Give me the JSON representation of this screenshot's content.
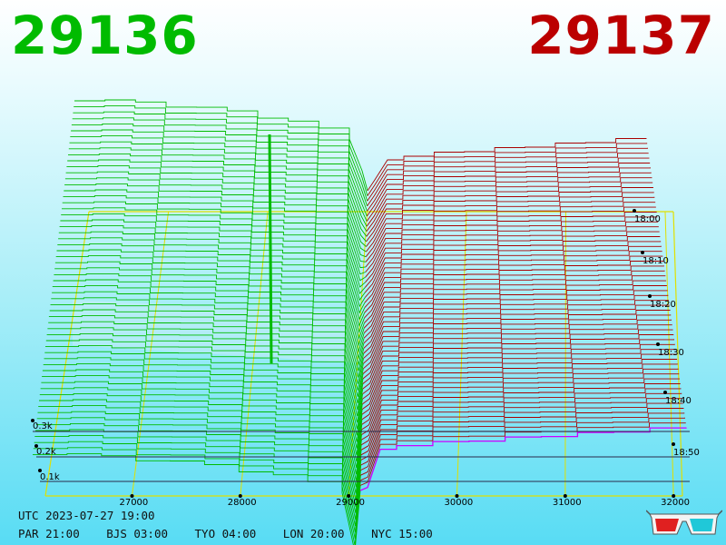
{
  "prices": {
    "bid": "29136",
    "ask": "29137",
    "bid_color": "#00bb00",
    "ask_color": "#bb0000"
  },
  "info": {
    "utc": "UTC 2023-07-27 19:00",
    "zones": [
      "PAR 21:00",
      "BJS 03:00",
      "TYO 04:00",
      "LON 20:00",
      "NYC 15:00"
    ]
  },
  "glasses_icon": "3d-glasses-icon",
  "chart_data": {
    "type": "3d-depth-surface",
    "x_ticks": [
      "27000",
      "28000",
      "29000",
      "30000",
      "31000",
      "32000"
    ],
    "z_ticks": [
      "0.1k",
      "0.2k",
      "0.3k"
    ],
    "time_ticks": [
      "18:00",
      "18:10",
      "18:20",
      "18:30",
      "18:40",
      "18:50"
    ],
    "bid_color": "#00bb00",
    "ask_color": "#aa0000",
    "current_ask_color": "#cc00ff",
    "frame_color": "#e0e000",
    "grid": true
  }
}
